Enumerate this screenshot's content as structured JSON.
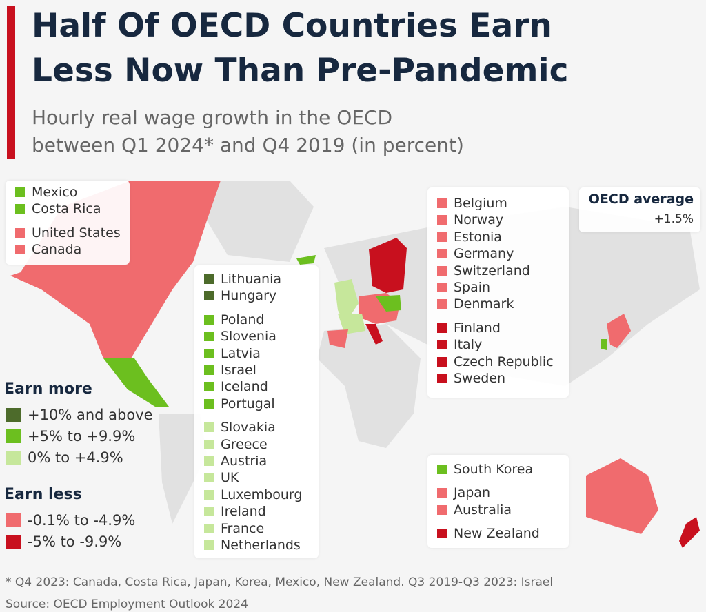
{
  "header": {
    "title_lines": [
      "Half Of OECD Countries Earn",
      "Less Now Than Pre-Pandemic"
    ],
    "subtitle_lines": [
      "Hourly real wage growth in the OECD",
      "between Q1 2024* and Q4 2019 (in percent)"
    ]
  },
  "legend": {
    "groups": [
      {
        "title": "Earn more",
        "items": [
          {
            "label": "+10% and above",
            "color": "#4d6b2b"
          },
          {
            "label": "+5% to +9.9%",
            "color": "#6cbf1f"
          },
          {
            "label": "0% to +4.9%",
            "color": "#c6e79b"
          }
        ]
      },
      {
        "title": "Earn less",
        "items": [
          {
            "label": "-0.1% to -4.9%",
            "color": "#f06b6e"
          },
          {
            "label": "-5% to -9.9%",
            "color": "#c8101e"
          }
        ]
      }
    ]
  },
  "boxes": [
    {
      "groups": [
        [
          {
            "label": "Mexico",
            "color": "#6cbf1f"
          },
          {
            "label": "Costa Rica",
            "color": "#6cbf1f"
          }
        ],
        [
          {
            "label": "United States",
            "color": "#f06b6e"
          },
          {
            "label": "Canada",
            "color": "#f06b6e"
          }
        ]
      ]
    },
    {
      "groups": [
        [
          {
            "label": "Lithuania",
            "color": "#4d6b2b"
          },
          {
            "label": "Hungary",
            "color": "#4d6b2b"
          }
        ],
        [
          {
            "label": "Poland",
            "color": "#6cbf1f"
          },
          {
            "label": "Slovenia",
            "color": "#6cbf1f"
          },
          {
            "label": "Latvia",
            "color": "#6cbf1f"
          },
          {
            "label": "Israel",
            "color": "#6cbf1f"
          },
          {
            "label": "Iceland",
            "color": "#6cbf1f"
          },
          {
            "label": "Portugal",
            "color": "#6cbf1f"
          }
        ],
        [
          {
            "label": "Slovakia",
            "color": "#c6e79b"
          },
          {
            "label": "Greece",
            "color": "#c6e79b"
          },
          {
            "label": "Austria",
            "color": "#c6e79b"
          },
          {
            "label": "UK",
            "color": "#c6e79b"
          },
          {
            "label": "Luxembourg",
            "color": "#c6e79b"
          },
          {
            "label": "Ireland",
            "color": "#c6e79b"
          },
          {
            "label": "France",
            "color": "#c6e79b"
          },
          {
            "label": "Netherlands",
            "color": "#c6e79b"
          }
        ]
      ]
    },
    {
      "groups": [
        [
          {
            "label": "Belgium",
            "color": "#f06b6e"
          },
          {
            "label": "Norway",
            "color": "#f06b6e"
          },
          {
            "label": "Estonia",
            "color": "#f06b6e"
          },
          {
            "label": "Germany",
            "color": "#f06b6e"
          },
          {
            "label": "Switzerland",
            "color": "#f06b6e"
          },
          {
            "label": "Spain",
            "color": "#f06b6e"
          },
          {
            "label": "Denmark",
            "color": "#f06b6e"
          }
        ],
        [
          {
            "label": "Finland",
            "color": "#c8101e"
          },
          {
            "label": "Italy",
            "color": "#c8101e"
          },
          {
            "label": "Czech Republic",
            "color": "#c8101e"
          },
          {
            "label": "Sweden",
            "color": "#c8101e"
          }
        ]
      ]
    },
    {
      "groups": [
        [
          {
            "label": "South Korea",
            "color": "#6cbf1f"
          }
        ],
        [
          {
            "label": "Japan",
            "color": "#f06b6e"
          },
          {
            "label": "Australia",
            "color": "#f06b6e"
          }
        ],
        [
          {
            "label": "New Zealand",
            "color": "#c8101e"
          }
        ]
      ]
    }
  ],
  "oecd_average": {
    "label": "OECD average",
    "value": "+1.5%"
  },
  "footnote": "* Q4 2023: Canada, Costa Rica, Japan, Korea, Mexico, New Zealand. Q3 2019-Q3 2023: Israel",
  "source": "Source: OECD Employment Outlook 2024"
}
